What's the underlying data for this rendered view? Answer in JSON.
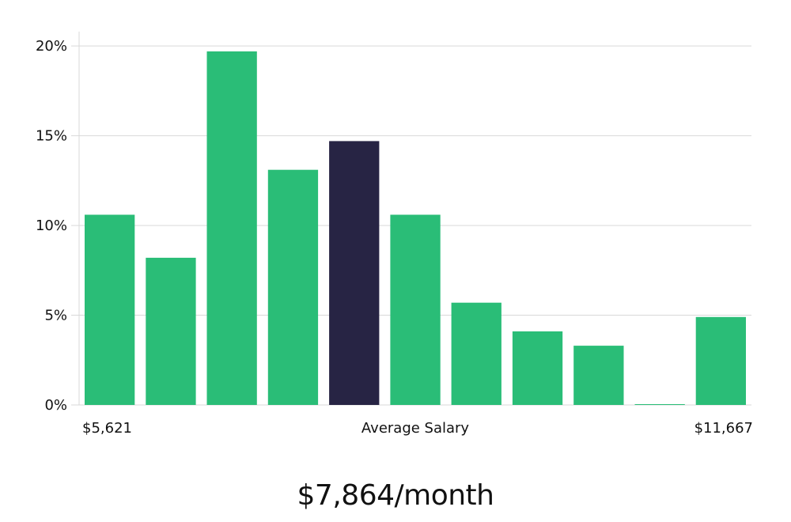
{
  "chart_data": {
    "type": "bar",
    "values": [
      10.6,
      8.2,
      19.7,
      13.1,
      14.7,
      10.6,
      5.7,
      4.1,
      3.3,
      0.0,
      4.9
    ],
    "highlight_index": 4,
    "y_ticks": [
      "0%",
      "5%",
      "10%",
      "15%",
      "20%"
    ],
    "ylim": [
      0,
      20.8
    ],
    "grid": true,
    "x_labels": {
      "left": "$5,621",
      "center": "Average Salary",
      "right": "$11,667"
    },
    "colors": {
      "bar": "#2abd77",
      "highlight": "#272444",
      "grid": "#d9d9d9"
    }
  },
  "headline": "$7,864/month"
}
